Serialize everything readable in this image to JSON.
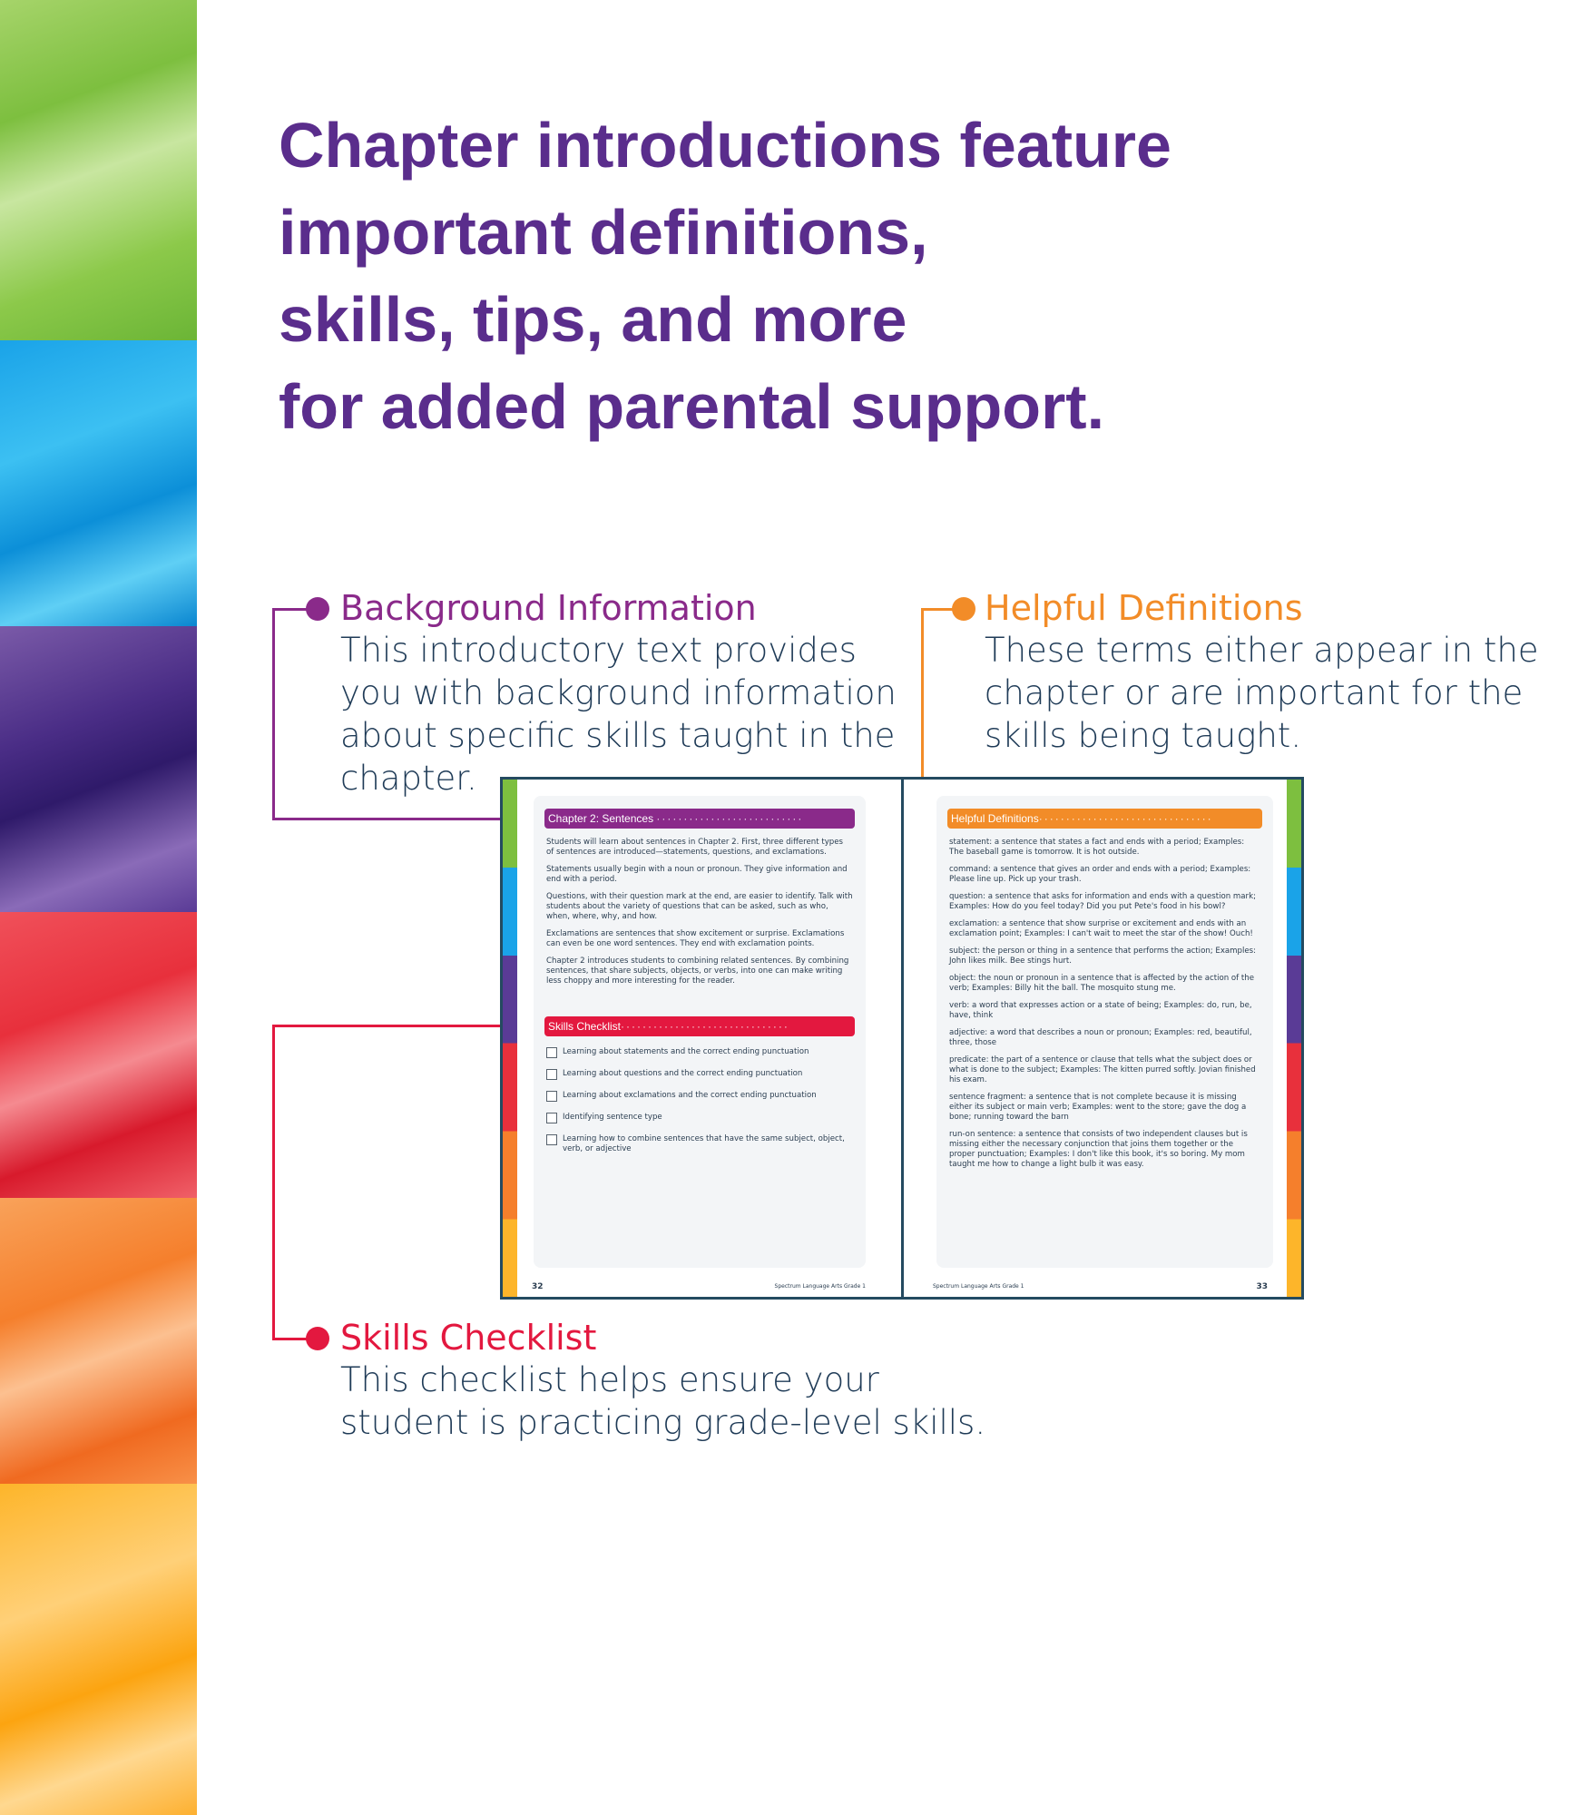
{
  "title": "Chapter introductions feature\nimportant definitions,\nskills, tips, and more\nfor added parental support.",
  "colors": {
    "title": "#5a2d8c",
    "background_info": "#8a2a8a",
    "helpful_definitions": "#f28c28",
    "skills_checklist": "#e3183f",
    "text": "#1f3b57"
  },
  "callouts": {
    "background": {
      "heading": "Background Information",
      "body": "This introductory text provides\nyou with background information\nabout specific skills taught in the\nchapter."
    },
    "definitions": {
      "heading": "Helpful Definitions",
      "body": "These terms either appear in the\nchapter or are important for the\nskills being taught."
    },
    "skills": {
      "heading": "Skills Checklist",
      "body": "This checklist helps ensure your\nstudent is practicing grade-level skills."
    }
  },
  "book": {
    "left": {
      "header": "Chapter 2: Sentences",
      "paragraphs": [
        "Students will learn about sentences in Chapter 2. First, three different types of sentences are introduced—statements, questions, and exclamations.",
        "Statements usually begin with a noun or pronoun. They give information and end with a period.",
        "Questions, with their question mark at the end, are easier to identify. Talk with students about the variety of questions that can be asked, such as who, when, where, why, and how.",
        "Exclamations are sentences that show excitement or surprise. Exclamations can even be one word sentences. They end with exclamation points.",
        "Chapter 2 introduces students to combining related sentences. By combining sentences, that share subjects, objects, or verbs, into one can make writing less choppy and more interesting for the reader."
      ],
      "checklist_header": "Skills Checklist",
      "checklist": [
        "Learning about statements and the correct ending punctuation",
        "Learning about questions and the correct ending punctuation",
        "Learning about exclamations and the correct ending punctuation",
        "Identifying sentence type",
        "Learning how to combine sentences that have the same subject, object, verb, or adjective"
      ],
      "page_number": "32",
      "footer": "Spectrum Language Arts Grade 1"
    },
    "right": {
      "header": "Helpful Definitions",
      "definitions": [
        "statement: a sentence that states a fact and ends with a period; Examples: The baseball game is tomorrow. It is hot outside.",
        "command: a sentence that gives an order and ends with a period; Examples: Please line up. Pick up your trash.",
        "question: a sentence that asks for information and ends with a question mark; Examples: How do you feel today? Did you put Pete's food in his bowl?",
        "exclamation: a sentence that show surprise or excitement and ends with an exclamation point; Examples: I can't wait to meet the star of the show! Ouch!",
        "subject: the person or thing in a sentence that performs the action; Examples: John likes milk. Bee stings hurt.",
        "object: the noun or pronoun in a sentence that is affected by the action of the verb; Examples: Billy hit the ball. The mosquito stung me.",
        "verb: a word that expresses action or a state of being; Examples: do, run, be, have, think",
        "adjective: a word that describes a noun or pronoun; Examples: red, beautiful, three, those",
        "predicate: the part of a sentence or clause that tells what the subject does or what is done to the subject; Examples: The kitten purred softly. Jovian finished his exam.",
        "sentence fragment: a sentence that is not complete because it is missing either its subject or main verb; Examples: went to the store; gave the dog a bone; running toward the barn",
        "run-on sentence: a sentence that consists of two independent clauses but is missing either the necessary conjunction that joins them together or the proper punctuation; Examples: I don't like this book, it's so boring. My mom taught me how to change a light bulb it was easy."
      ],
      "page_number": "33",
      "footer": "Spectrum Language Arts Grade 1"
    }
  }
}
